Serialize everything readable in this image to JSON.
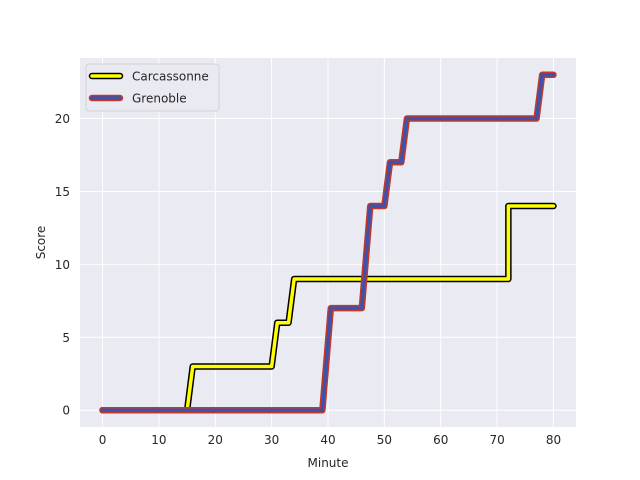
{
  "chart_data": {
    "type": "line",
    "xlabel": "Minute",
    "ylabel": "Score",
    "xlim": [
      -4,
      84
    ],
    "ylim": [
      -1.15,
      24.15
    ],
    "xticks": [
      0,
      10,
      20,
      30,
      40,
      50,
      60,
      70,
      80
    ],
    "yticks": [
      0,
      5,
      10,
      15,
      20
    ],
    "grid": true,
    "legend_position": "top-left",
    "series": [
      {
        "name": "Carcassonne",
        "color": "#ffff00",
        "edge_color": "#000000",
        "x": [
          0,
          15,
          16,
          30,
          31,
          33,
          34,
          72,
          72,
          80
        ],
        "y": [
          0,
          0,
          3,
          3,
          6,
          6,
          9,
          9,
          14,
          14
        ]
      },
      {
        "name": "Grenoble",
        "color": "#3f51a8",
        "edge_color": "#c0392b",
        "x": [
          0,
          39,
          40.5,
          46,
          47.5,
          50,
          51,
          53,
          54,
          77,
          78,
          80
        ],
        "y": [
          0,
          0,
          7,
          7,
          14,
          14,
          17,
          17,
          20,
          20,
          23,
          23
        ]
      }
    ]
  }
}
